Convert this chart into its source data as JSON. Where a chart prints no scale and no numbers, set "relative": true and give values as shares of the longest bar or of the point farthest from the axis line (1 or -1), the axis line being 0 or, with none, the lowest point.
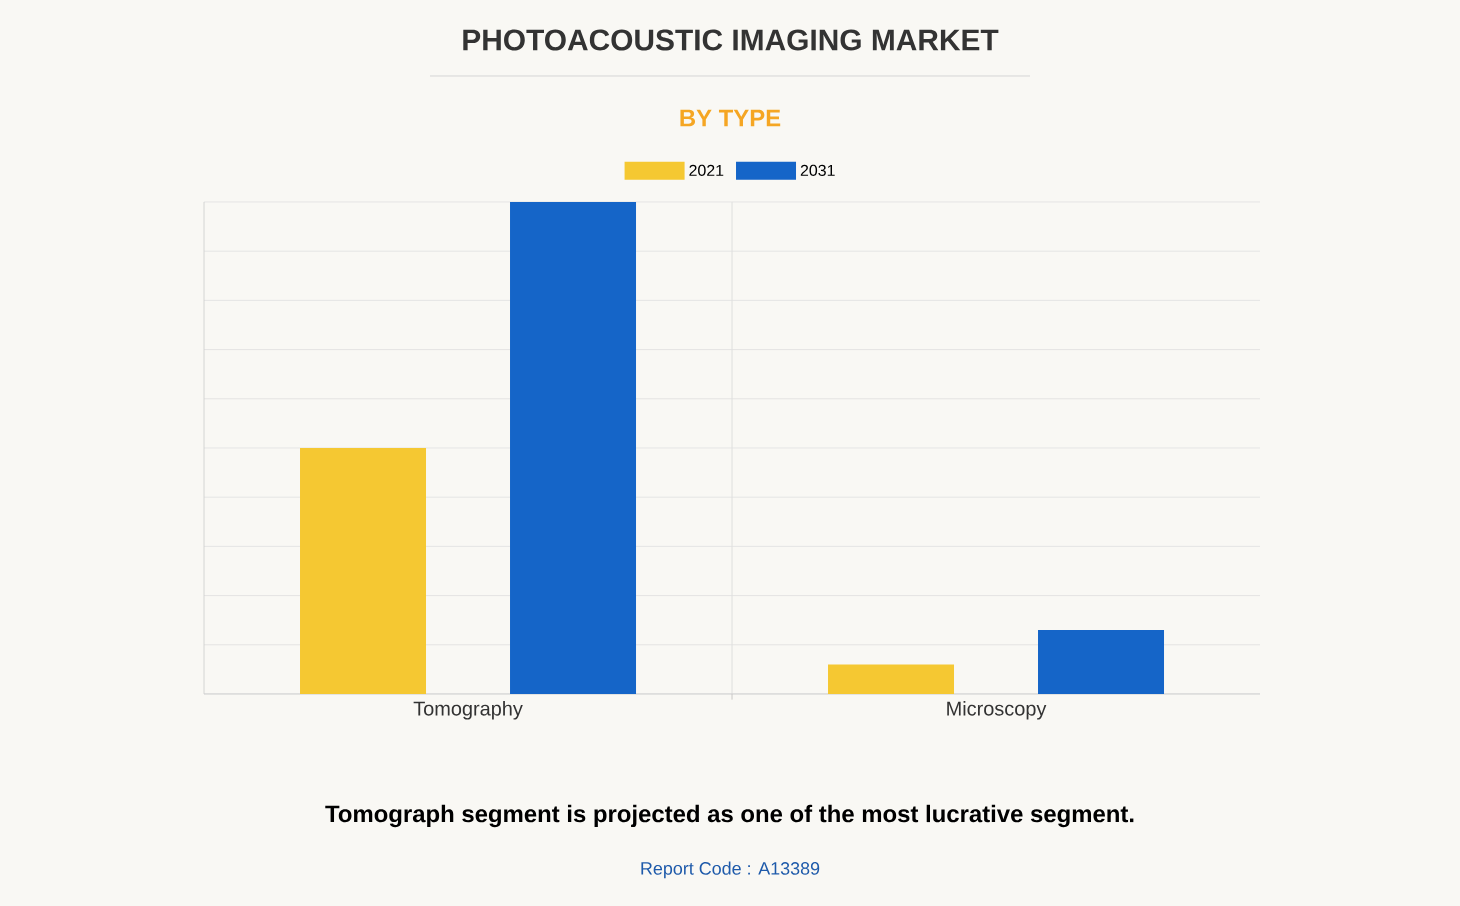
{
  "chart_data": {
    "type": "bar",
    "title": "PHOTOACOUSTIC IMAGING MARKET",
    "subtitle": "BY TYPE",
    "categories": [
      "Tomography",
      "Microscopy"
    ],
    "series": [
      {
        "name": "2021",
        "color": "#f5c832",
        "values": [
          0.5,
          0.06
        ]
      },
      {
        "name": "2031",
        "color": "#1565c8",
        "values": [
          1,
          0.13
        ]
      }
    ],
    "relative": true,
    "grid": "y",
    "legend": "top",
    "annotations": [
      "Tomograph segment is projected as one of the most lucrative segment.",
      "Report Code : A13389"
    ]
  }
}
